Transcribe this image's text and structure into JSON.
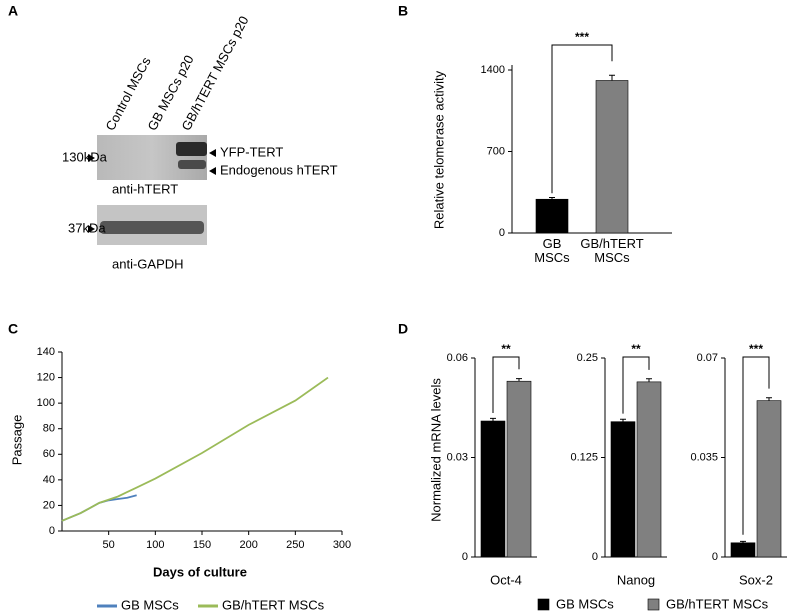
{
  "figure_labels": [
    "A",
    "B",
    "C",
    "D"
  ],
  "blot": {
    "lanes": [
      "Control MSCs",
      "GB MSCs p20",
      "GB/hTERT MSCs p20"
    ],
    "markers": [
      "130kDa",
      "37kDa"
    ],
    "band_labels": [
      "YFP-TERT",
      "Endogenous hTERT"
    ],
    "antibodies": [
      "anti-hTERT",
      "anti-GAPDH"
    ]
  },
  "chart_data": [
    {
      "type": "bar",
      "y_label": "Relative telomerase activity",
      "categories": [
        "GB MSCs",
        "GB/hTERT MSCs"
      ],
      "values": [
        290,
        1310
      ],
      "errors": [
        15,
        45
      ],
      "colors": [
        "#000000",
        "#808080"
      ],
      "ylim": [
        0,
        1400
      ],
      "yticks": [
        0,
        700,
        1400
      ],
      "significance": "***"
    },
    {
      "type": "line",
      "x_label": "Days of culture",
      "y_label": "Passage",
      "xlim": [
        0,
        300
      ],
      "xticks": [
        50,
        100,
        150,
        200,
        250,
        300
      ],
      "ylim": [
        0,
        140
      ],
      "yticks": [
        0,
        20,
        40,
        60,
        80,
        100,
        120,
        140
      ],
      "series": [
        {
          "name": "GB MSCs",
          "color": "#4f81bd",
          "x": [
            0,
            10,
            20,
            30,
            40,
            50,
            60,
            70,
            80
          ],
          "values": [
            8,
            11,
            14,
            18,
            22,
            24,
            25,
            26,
            28
          ]
        },
        {
          "name": "GB/hTERT MSCs",
          "color": "#9bbb59",
          "x": [
            0,
            20,
            40,
            60,
            80,
            100,
            150,
            200,
            250,
            285
          ],
          "values": [
            8,
            14,
            22,
            27,
            34,
            41,
            61,
            83,
            102,
            120
          ]
        }
      ]
    },
    {
      "type": "bar",
      "y_label": "Normalized mRNA levels",
      "categories": [
        "Oct-4",
        "Nanog",
        "Sox-2"
      ],
      "series": [
        {
          "name": "GB MSCs",
          "color": "#000000",
          "values": [
            0.041,
            0.17,
            0.005
          ],
          "errors": [
            0.0008,
            0.003,
            0.0005
          ]
        },
        {
          "name": "GB/hTERT MSCs",
          "color": "#808080",
          "values": [
            0.053,
            0.22,
            0.055
          ],
          "errors": [
            0.0008,
            0.004,
            0.001
          ]
        }
      ],
      "panels": [
        {
          "ylim": [
            0,
            0.06
          ],
          "yticks": [
            0,
            0.03,
            0.06
          ],
          "significance": "**"
        },
        {
          "ylim": [
            0,
            0.25
          ],
          "yticks": [
            0,
            0.125,
            0.25
          ],
          "significance": "**"
        },
        {
          "ylim": [
            0,
            0.07
          ],
          "yticks": [
            0,
            0.035,
            0.07
          ],
          "significance": "***"
        }
      ]
    }
  ]
}
